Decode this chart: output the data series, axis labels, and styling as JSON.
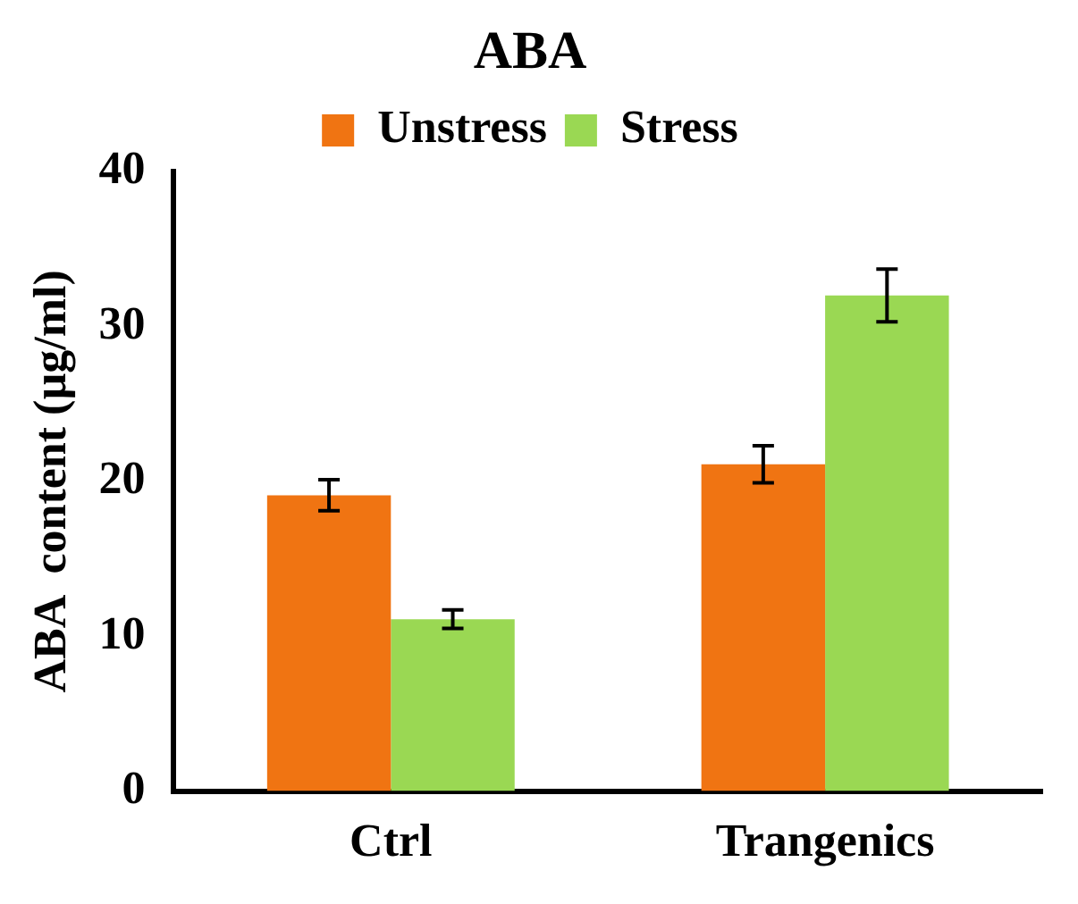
{
  "chart_data": {
    "type": "bar",
    "title": "ABA",
    "ylabel": "ABA  content (µg/ml)",
    "categories": [
      "Ctrl",
      "Trangenics"
    ],
    "series": [
      {
        "name": "Unstress",
        "color": "#f07412",
        "values": [
          19.1,
          21.1
        ],
        "errors": [
          1.0,
          1.2
        ]
      },
      {
        "name": "Stress",
        "color": "#9ad853",
        "values": [
          11.1,
          32.0
        ],
        "errors": [
          0.6,
          1.7
        ]
      }
    ],
    "ylim": [
      0,
      40
    ],
    "yticks": [
      0,
      10,
      20,
      30,
      40
    ],
    "grid": false,
    "legend": "top"
  }
}
